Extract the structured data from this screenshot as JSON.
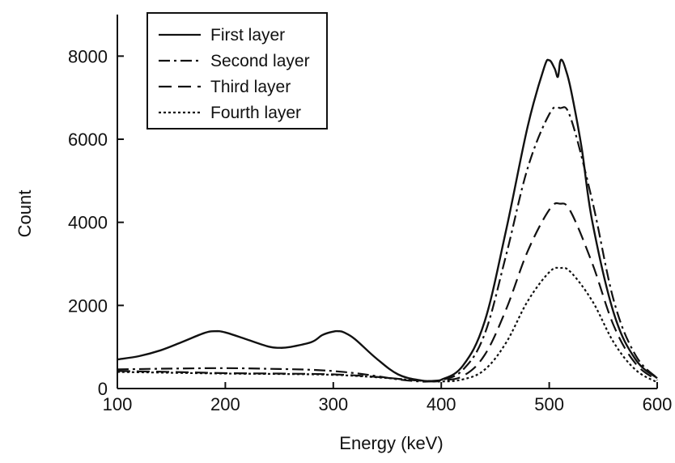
{
  "chart_data": {
    "type": "line",
    "xlabel": "Energy (keV)",
    "ylabel": "Count",
    "xlim": [
      100,
      600
    ],
    "ylim": [
      0,
      9000
    ],
    "x_ticks": [
      "100",
      "200",
      "300",
      "400",
      "500",
      "600"
    ],
    "y_ticks": [
      "0",
      "2000",
      "4000",
      "6000",
      "8000"
    ],
    "grid": false,
    "legend_position": "top-left",
    "series": [
      {
        "name": "First layer",
        "dash": "solid",
        "x": [
          100,
          120,
          140,
          160,
          180,
          190,
          200,
          220,
          240,
          250,
          260,
          280,
          290,
          300,
          305,
          310,
          320,
          340,
          360,
          380,
          390,
          400,
          420,
          440,
          460,
          480,
          495,
          500,
          505,
          508,
          510,
          512,
          515,
          520,
          530,
          540,
          560,
          580,
          600
        ],
        "y": [
          700,
          780,
          920,
          1120,
          1330,
          1380,
          1350,
          1180,
          1010,
          980,
          1000,
          1120,
          1290,
          1370,
          1380,
          1350,
          1190,
          720,
          340,
          200,
          180,
          210,
          550,
          1600,
          3800,
          6300,
          7700,
          7900,
          7700,
          7500,
          7850,
          7900,
          7700,
          7200,
          5800,
          4000,
          1800,
          700,
          250
        ]
      },
      {
        "name": "Second layer",
        "dash": "dash-dot",
        "x": [
          100,
          150,
          200,
          250,
          280,
          300,
          320,
          340,
          360,
          380,
          390,
          400,
          420,
          440,
          460,
          480,
          500,
          510,
          520,
          540,
          560,
          580,
          600
        ],
        "y": [
          460,
          480,
          490,
          470,
          450,
          420,
          370,
          300,
          220,
          170,
          170,
          200,
          450,
          1300,
          3200,
          5300,
          6600,
          6750,
          6500,
          4500,
          2100,
          800,
          250
        ]
      },
      {
        "name": "Third layer",
        "dash": "dashed",
        "x": [
          100,
          150,
          200,
          250,
          300,
          340,
          380,
          400,
          420,
          440,
          460,
          480,
          500,
          510,
          520,
          540,
          560,
          580,
          600
        ],
        "y": [
          420,
          400,
          370,
          360,
          340,
          280,
          190,
          200,
          300,
          800,
          1900,
          3300,
          4300,
          4450,
          4250,
          3000,
          1500,
          600,
          200
        ]
      },
      {
        "name": "Fourth layer",
        "dash": "dotted",
        "x": [
          100,
          150,
          200,
          250,
          300,
          340,
          380,
          400,
          420,
          440,
          460,
          480,
          500,
          510,
          520,
          540,
          560,
          580,
          600
        ],
        "y": [
          400,
          380,
          360,
          350,
          330,
          270,
          190,
          170,
          220,
          450,
          1100,
          2100,
          2800,
          2900,
          2800,
          2100,
          1100,
          450,
          150
        ]
      }
    ]
  }
}
